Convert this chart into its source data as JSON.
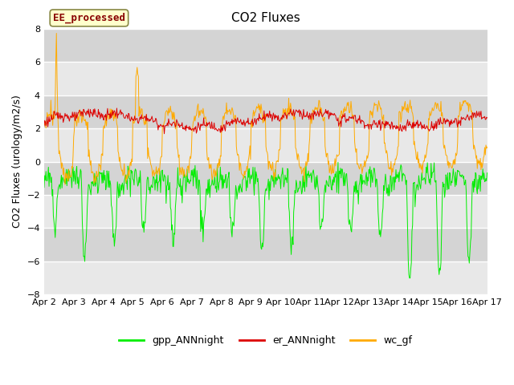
{
  "title": "CO2 Fluxes",
  "ylabel": "CO2 Fluxes (urology/m2/s)",
  "ylim": [
    -8,
    8
  ],
  "yticks": [
    -8,
    -6,
    -4,
    -2,
    0,
    2,
    4,
    6,
    8
  ],
  "xtick_labels": [
    "Apr 2",
    "Apr 3",
    "Apr 4",
    "Apr 5",
    "Apr 6",
    "Apr 7",
    "Apr 8",
    "Apr 9",
    "Apr 10",
    "Apr 11",
    "Apr 12",
    "Apr 13",
    "Apr 14",
    "Apr 15",
    "Apr 16",
    "Apr 17"
  ],
  "annotation": "EE_processed",
  "legend_labels": [
    "gpp_ANNnight",
    "er_ANNnight",
    "wc_gf"
  ],
  "colors": {
    "gpp_ANNnight": "#00ee00",
    "er_ANNnight": "#dd0000",
    "wc_gf": "#ffaa00"
  },
  "bg_light": "#e8e8e8",
  "bg_dark": "#d4d4d4",
  "title_fontsize": 11,
  "axis_label_fontsize": 9,
  "tick_fontsize": 8
}
